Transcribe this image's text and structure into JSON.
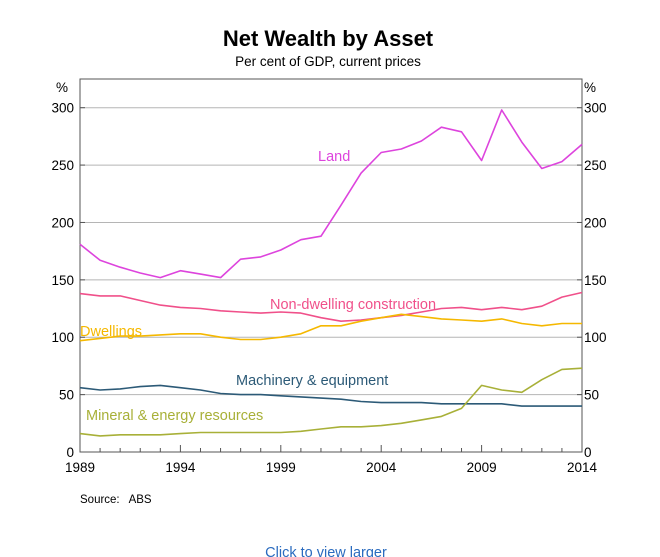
{
  "chart_data": {
    "type": "line",
    "title": "Net Wealth by Asset",
    "subtitle": "Per cent of GDP, current prices",
    "ylabel_left": "%",
    "ylabel_right": "%",
    "xlim": [
      1989,
      2014
    ],
    "ylim": [
      0,
      325
    ],
    "x_ticks": [
      1989,
      1994,
      1999,
      2004,
      2009,
      2014
    ],
    "x_tick_labels": [
      "1989",
      "1994",
      "1999",
      "2004",
      "2009",
      "2014"
    ],
    "y_ticks": [
      0,
      50,
      100,
      150,
      200,
      250,
      300
    ],
    "y_tick_labels": [
      "0",
      "50",
      "100",
      "150",
      "200",
      "250",
      "300"
    ],
    "grid": "horizontal",
    "x": [
      1989,
      1990,
      1991,
      1992,
      1993,
      1994,
      1995,
      1996,
      1997,
      1998,
      1999,
      2000,
      2001,
      2002,
      2003,
      2004,
      2005,
      2006,
      2007,
      2008,
      2009,
      2010,
      2011,
      2012,
      2013,
      2014
    ],
    "series": [
      {
        "name": "Land",
        "label": "Land",
        "color": "#dd44dd",
        "values": [
          181,
          167,
          161,
          156,
          152,
          158,
          155,
          152,
          168,
          170,
          176,
          185,
          188,
          215,
          243,
          261,
          264,
          271,
          283,
          279,
          254,
          298,
          270,
          247,
          253,
          268
        ]
      },
      {
        "name": "Non-dwelling construction",
        "label": "Non-dwelling construction",
        "color": "#f0508a",
        "values": [
          138,
          136,
          136,
          132,
          128,
          126,
          125,
          123,
          122,
          121,
          122,
          121,
          117,
          114,
          115,
          117,
          119,
          122,
          125,
          126,
          124,
          126,
          124,
          127,
          135,
          139
        ]
      },
      {
        "name": "Dwellings",
        "label": "Dwellings",
        "color": "#f5b800",
        "values": [
          97,
          99,
          101,
          101,
          102,
          103,
          103,
          100,
          98,
          98,
          100,
          103,
          110,
          110,
          114,
          117,
          120,
          118,
          116,
          115,
          114,
          116,
          112,
          110,
          112,
          112
        ]
      },
      {
        "name": "Machinery & equipment",
        "label": "Machinery & equipment",
        "color": "#2c5a77",
        "values": [
          56,
          54,
          55,
          57,
          58,
          56,
          54,
          51,
          50,
          50,
          49,
          48,
          47,
          46,
          44,
          43,
          43,
          43,
          42,
          42,
          42,
          42,
          40,
          40,
          40,
          40
        ]
      },
      {
        "name": "Mineral & energy resources",
        "label": "Mineral & energy resources",
        "color": "#a8b038",
        "values": [
          16,
          14,
          15,
          15,
          15,
          16,
          17,
          17,
          17,
          17,
          17,
          18,
          20,
          22,
          22,
          23,
          25,
          28,
          31,
          38,
          58,
          54,
          52,
          63,
          72,
          73
        ]
      }
    ],
    "source": "Source:   ABS",
    "footer_link": "Click to view larger"
  }
}
